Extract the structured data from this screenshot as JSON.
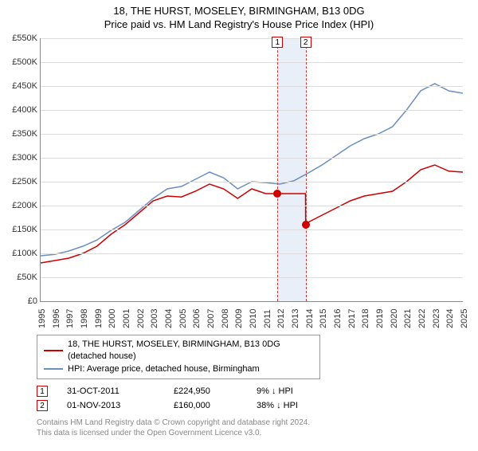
{
  "title_line1": "18, THE HURST, MOSELEY, BIRMINGHAM, B13 0DG",
  "title_line2": "Price paid vs. HM Land Registry's House Price Index (HPI)",
  "chart": {
    "type": "line",
    "xlim": [
      1995,
      2025
    ],
    "ylim": [
      0,
      550000
    ],
    "ytick_step": 50000,
    "yticks": [
      "£0",
      "£50K",
      "£100K",
      "£150K",
      "£200K",
      "£250K",
      "£300K",
      "£350K",
      "£400K",
      "£450K",
      "£500K",
      "£550K"
    ],
    "xticks": [
      "1995",
      "1996",
      "1997",
      "1998",
      "1999",
      "2000",
      "2001",
      "2002",
      "2003",
      "2004",
      "2005",
      "2006",
      "2007",
      "2008",
      "2009",
      "2010",
      "2011",
      "2012",
      "2013",
      "2014",
      "2015",
      "2016",
      "2017",
      "2018",
      "2019",
      "2020",
      "2021",
      "2022",
      "2023",
      "2024",
      "2025"
    ],
    "background_color": "#ffffff",
    "grid_color": "#dddddd",
    "axis_color": "#888888",
    "band_color": "#e8eff8",
    "band_x_start": 2011.83,
    "band_x_end": 2013.83,
    "series": [
      {
        "name": "property",
        "color": "#cc0000",
        "line_width": 1.5,
        "points": [
          [
            1995,
            80000
          ],
          [
            1996,
            85000
          ],
          [
            1997,
            90000
          ],
          [
            1998,
            100000
          ],
          [
            1999,
            115000
          ],
          [
            2000,
            140000
          ],
          [
            2001,
            160000
          ],
          [
            2002,
            185000
          ],
          [
            2003,
            210000
          ],
          [
            2004,
            220000
          ],
          [
            2005,
            218000
          ],
          [
            2006,
            230000
          ],
          [
            2007,
            245000
          ],
          [
            2008,
            235000
          ],
          [
            2009,
            215000
          ],
          [
            2010,
            235000
          ],
          [
            2011,
            225000
          ],
          [
            2011.83,
            224950
          ],
          [
            2013.82,
            224950
          ],
          [
            2013.83,
            160000
          ],
          [
            2014,
            165000
          ],
          [
            2015,
            180000
          ],
          [
            2016,
            195000
          ],
          [
            2017,
            210000
          ],
          [
            2018,
            220000
          ],
          [
            2019,
            225000
          ],
          [
            2020,
            230000
          ],
          [
            2021,
            250000
          ],
          [
            2022,
            275000
          ],
          [
            2023,
            285000
          ],
          [
            2024,
            272000
          ],
          [
            2025,
            270000
          ]
        ]
      },
      {
        "name": "hpi",
        "color": "#6a8fc0",
        "line_width": 1.5,
        "points": [
          [
            1995,
            95000
          ],
          [
            1996,
            98000
          ],
          [
            1997,
            105000
          ],
          [
            1998,
            115000
          ],
          [
            1999,
            128000
          ],
          [
            2000,
            148000
          ],
          [
            2001,
            165000
          ],
          [
            2002,
            190000
          ],
          [
            2003,
            215000
          ],
          [
            2004,
            235000
          ],
          [
            2005,
            240000
          ],
          [
            2006,
            255000
          ],
          [
            2007,
            270000
          ],
          [
            2008,
            258000
          ],
          [
            2009,
            235000
          ],
          [
            2010,
            250000
          ],
          [
            2011,
            248000
          ],
          [
            2012,
            245000
          ],
          [
            2013,
            252000
          ],
          [
            2014,
            268000
          ],
          [
            2015,
            285000
          ],
          [
            2016,
            305000
          ],
          [
            2017,
            325000
          ],
          [
            2018,
            340000
          ],
          [
            2019,
            350000
          ],
          [
            2020,
            365000
          ],
          [
            2021,
            400000
          ],
          [
            2022,
            440000
          ],
          [
            2023,
            455000
          ],
          [
            2024,
            440000
          ],
          [
            2025,
            435000
          ]
        ]
      }
    ],
    "sale_markers": [
      {
        "num": "1",
        "x": 2011.83,
        "y": 224950,
        "dot_color": "#cc0000"
      },
      {
        "num": "2",
        "x": 2013.83,
        "y": 160000,
        "dot_color": "#cc0000"
      }
    ]
  },
  "legend": {
    "series1_label": "18, THE HURST, MOSELEY, BIRMINGHAM, B13 0DG (detached house)",
    "series2_label": "HPI: Average price, detached house, Birmingham"
  },
  "sales": [
    {
      "num": "1",
      "date": "31-OCT-2011",
      "price": "£224,950",
      "pct": "9% ↓ HPI"
    },
    {
      "num": "2",
      "date": "01-NOV-2013",
      "price": "£160,000",
      "pct": "38% ↓ HPI"
    }
  ],
  "footnote_l1": "Contains HM Land Registry data © Crown copyright and database right 2024.",
  "footnote_l2": "This data is licensed under the Open Government Licence v3.0."
}
